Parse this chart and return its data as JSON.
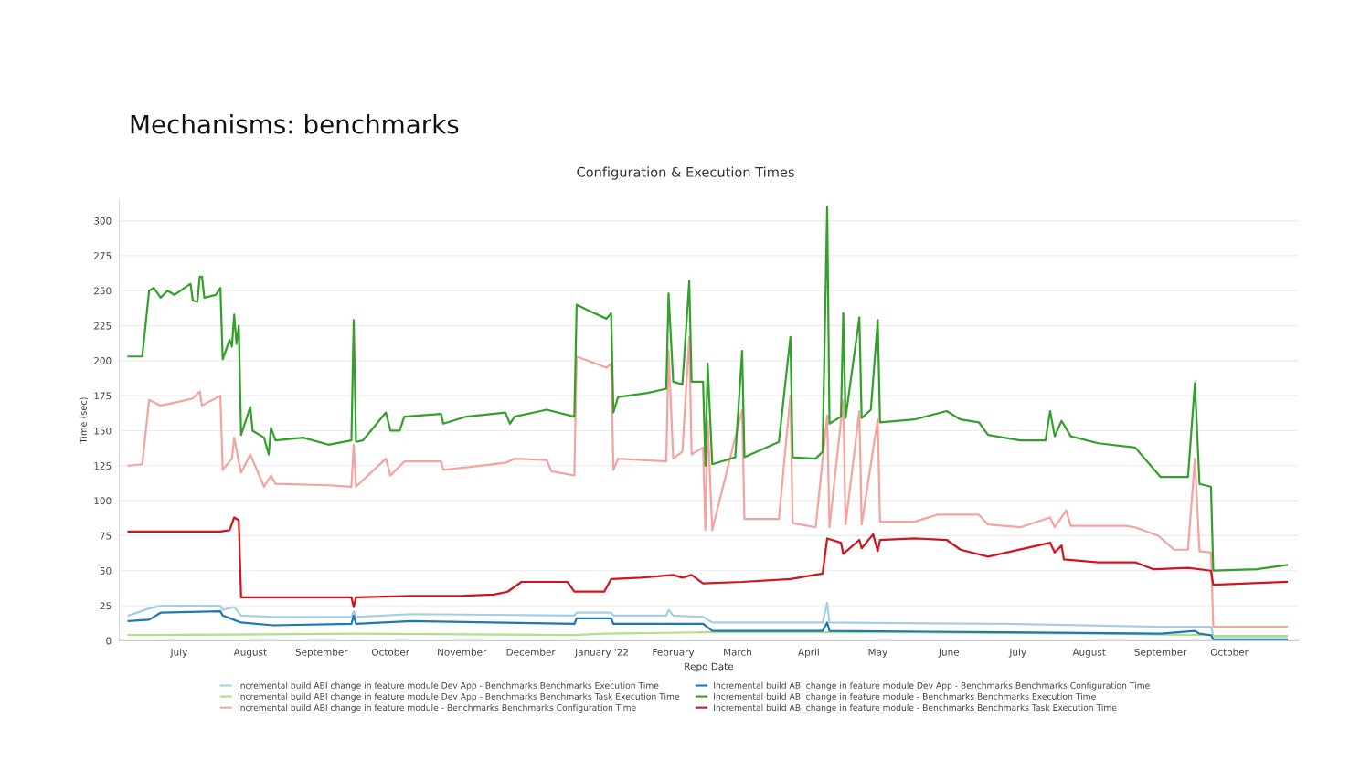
{
  "chart_data": {
    "type": "line",
    "title": "Mechanisms: benchmarks",
    "subtitle": "Configuration & Execution Times",
    "xlabel": "Repo Date",
    "ylabel": "Time (sec)",
    "xlim": [
      "2021-06-05",
      "2022-10-31"
    ],
    "ylim": [
      0,
      315
    ],
    "yticks": [
      0,
      25,
      50,
      75,
      100,
      125,
      150,
      175,
      200,
      225,
      250,
      275,
      300
    ],
    "xticks": [
      {
        "value": "2021-07-01",
        "label": "July"
      },
      {
        "value": "2021-08-01",
        "label": "August"
      },
      {
        "value": "2021-09-01",
        "label": "September"
      },
      {
        "value": "2021-10-01",
        "label": "October"
      },
      {
        "value": "2021-11-01",
        "label": "November"
      },
      {
        "value": "2021-12-01",
        "label": "December"
      },
      {
        "value": "2022-01-01",
        "label": "January '22"
      },
      {
        "value": "2022-02-01",
        "label": "February"
      },
      {
        "value": "2022-03-01",
        "label": "March"
      },
      {
        "value": "2022-04-01",
        "label": "April"
      },
      {
        "value": "2022-05-01",
        "label": "May"
      },
      {
        "value": "2022-06-01",
        "label": "June"
      },
      {
        "value": "2022-07-01",
        "label": "July"
      },
      {
        "value": "2022-08-01",
        "label": "August"
      },
      {
        "value": "2022-09-01",
        "label": "September"
      },
      {
        "value": "2022-10-01",
        "label": "October"
      }
    ],
    "grid": "y",
    "legend": "bottom",
    "marker": "none",
    "line_style": "solid",
    "series": [
      {
        "name": "Incremental build ABI change in feature module Dev App - Benchmarks Benchmarks Execution Time",
        "color": "#a6cee3",
        "x": [
          "2021-06-09",
          "2021-06-18",
          "2021-06-23",
          "2021-07-19",
          "2021-07-20",
          "2021-07-25",
          "2021-07-28",
          "2021-08-11",
          "2021-09-14",
          "2021-09-15",
          "2021-09-16",
          "2021-10-10",
          "2021-12-20",
          "2021-12-21",
          "2022-01-05",
          "2022-01-06",
          "2022-01-29",
          "2022-01-30",
          "2022-02-01",
          "2022-02-14",
          "2022-02-18",
          "2022-04-07",
          "2022-04-09",
          "2022-04-10",
          "2022-06-26",
          "2022-09-01",
          "2022-09-23",
          "2022-09-24",
          "2022-10-26"
        ],
        "values": [
          18,
          23,
          25,
          25,
          22,
          24,
          18,
          17,
          17,
          21,
          17,
          19,
          18,
          20,
          20,
          18,
          18,
          22,
          18,
          17,
          13,
          13,
          27,
          13,
          12,
          10,
          10,
          3.5,
          3.5
        ]
      },
      {
        "name": "Incremental build ABI change in feature module Dev App - Benchmarks Benchmarks Task Execution Time",
        "color": "#b2df8a",
        "x": [
          "2021-06-09",
          "2021-09-16",
          "2021-12-20",
          "2022-01-02",
          "2022-02-14",
          "2022-05-17",
          "2022-08-05",
          "2022-09-23",
          "2022-09-24",
          "2022-10-26"
        ],
        "values": [
          4,
          5,
          4,
          5,
          6,
          6,
          5,
          4,
          3,
          3
        ]
      },
      {
        "name": "Incremental build ABI change in feature module - Benchmarks Benchmarks Configuration Time",
        "color": "#f4a3a0",
        "x": [
          "2021-06-09",
          "2021-06-15",
          "2021-06-18",
          "2021-06-23",
          "2021-06-29",
          "2021-07-07",
          "2021-07-10",
          "2021-07-11",
          "2021-07-19",
          "2021-07-20",
          "2021-07-24",
          "2021-07-25",
          "2021-07-27",
          "2021-07-28",
          "2021-08-01",
          "2021-08-07",
          "2021-08-10",
          "2021-08-12",
          "2021-09-04",
          "2021-09-14",
          "2021-09-15",
          "2021-09-16",
          "2021-09-29",
          "2021-10-01",
          "2021-10-07",
          "2021-10-23",
          "2021-10-24",
          "2021-11-20",
          "2021-11-24",
          "2021-12-08",
          "2021-12-10",
          "2021-12-20",
          "2021-12-21",
          "2022-01-03",
          "2022-01-05",
          "2022-01-06",
          "2022-01-08",
          "2022-01-29",
          "2022-01-30",
          "2022-02-01",
          "2022-02-05",
          "2022-02-08",
          "2022-02-09",
          "2022-02-14",
          "2022-02-15",
          "2022-02-16",
          "2022-02-18",
          "2022-03-03",
          "2022-03-04",
          "2022-03-19",
          "2022-03-24",
          "2022-03-25",
          "2022-04-04",
          "2022-04-09",
          "2022-04-10",
          "2022-04-16",
          "2022-04-17",
          "2022-04-23",
          "2022-04-24",
          "2022-05-01",
          "2022-05-02",
          "2022-05-17",
          "2022-05-27",
          "2022-06-14",
          "2022-06-18",
          "2022-07-02",
          "2022-07-15",
          "2022-07-17",
          "2022-07-22",
          "2022-07-24",
          "2022-08-17",
          "2022-08-21",
          "2022-08-31",
          "2022-09-07",
          "2022-09-13",
          "2022-09-16",
          "2022-09-18",
          "2022-09-23",
          "2022-09-24",
          "2022-10-26"
        ],
        "values": [
          125,
          126,
          172,
          168,
          170,
          173,
          178,
          168,
          175,
          122,
          130,
          145,
          128,
          120,
          133,
          110,
          118,
          112,
          111,
          110,
          140,
          110,
          130,
          118,
          128,
          128,
          122,
          127,
          130,
          129,
          121,
          118,
          203,
          195,
          198,
          122,
          130,
          128,
          207,
          130,
          135,
          217,
          133,
          138,
          79,
          157,
          79,
          165,
          87,
          87,
          175,
          84,
          81,
          161,
          81,
          172,
          83,
          164,
          83,
          158,
          85,
          85,
          90,
          90,
          83,
          81,
          88,
          81,
          93,
          82,
          82,
          81,
          75,
          65,
          65,
          130,
          64,
          63,
          10,
          10
        ]
      },
      {
        "name": "Incremental build ABI change in feature module Dev App - Benchmarks Benchmarks Configuration Time",
        "color": "#1f78b4",
        "x": [
          "2021-06-09",
          "2021-06-18",
          "2021-06-23",
          "2021-07-19",
          "2021-07-20",
          "2021-07-28",
          "2021-08-11",
          "2021-09-14",
          "2021-09-15",
          "2021-09-16",
          "2021-10-10",
          "2021-12-20",
          "2021-12-21",
          "2022-01-05",
          "2022-01-06",
          "2022-02-14",
          "2022-02-18",
          "2022-04-07",
          "2022-04-09",
          "2022-04-10",
          "2022-06-26",
          "2022-09-01",
          "2022-09-16",
          "2022-09-18",
          "2022-09-23",
          "2022-09-24",
          "2022-10-26"
        ],
        "values": [
          14,
          15,
          20,
          21,
          18,
          13,
          11,
          12,
          18,
          12,
          14,
          12,
          16,
          16,
          12,
          12,
          7,
          7,
          13,
          7,
          6,
          5,
          7,
          5,
          4,
          1,
          1
        ]
      },
      {
        "name": "Incremental build ABI change in feature module - Benchmarks Benchmarks Execution Time",
        "color": "#33a02c",
        "x": [
          "2021-06-09",
          "2021-06-15",
          "2021-06-18",
          "2021-06-20",
          "2021-06-23",
          "2021-06-26",
          "2021-06-29",
          "2021-07-06",
          "2021-07-07",
          "2021-07-09",
          "2021-07-10",
          "2021-07-11",
          "2021-07-12",
          "2021-07-17",
          "2021-07-19",
          "2021-07-20",
          "2021-07-23",
          "2021-07-24",
          "2021-07-25",
          "2021-07-26",
          "2021-07-27",
          "2021-07-28",
          "2021-07-30",
          "2021-08-01",
          "2021-08-02",
          "2021-08-07",
          "2021-08-09",
          "2021-08-10",
          "2021-08-12",
          "2021-08-24",
          "2021-09-04",
          "2021-09-14",
          "2021-09-15",
          "2021-09-16",
          "2021-09-19",
          "2021-09-29",
          "2021-10-01",
          "2021-10-05",
          "2021-10-07",
          "2021-10-23",
          "2021-10-24",
          "2021-11-03",
          "2021-11-20",
          "2021-11-22",
          "2021-11-24",
          "2021-12-08",
          "2021-12-20",
          "2021-12-21",
          "2021-12-26",
          "2022-01-03",
          "2022-01-05",
          "2022-01-06",
          "2022-01-08",
          "2022-01-21",
          "2022-01-29",
          "2022-01-30",
          "2022-02-01",
          "2022-02-05",
          "2022-02-08",
          "2022-02-09",
          "2022-02-14",
          "2022-02-15",
          "2022-02-16",
          "2022-02-18",
          "2022-02-28",
          "2022-03-03",
          "2022-03-04",
          "2022-03-19",
          "2022-03-24",
          "2022-03-25",
          "2022-04-04",
          "2022-04-07",
          "2022-04-09",
          "2022-04-10",
          "2022-04-15",
          "2022-04-16",
          "2022-04-17",
          "2022-04-23",
          "2022-04-24",
          "2022-04-28",
          "2022-05-01",
          "2022-05-02",
          "2022-05-17",
          "2022-05-31",
          "2022-06-06",
          "2022-06-14",
          "2022-06-18",
          "2022-07-02",
          "2022-07-13",
          "2022-07-15",
          "2022-07-17",
          "2022-07-20",
          "2022-07-24",
          "2022-08-05",
          "2022-08-21",
          "2022-09-01",
          "2022-09-13",
          "2022-09-16",
          "2022-09-18",
          "2022-09-23",
          "2022-09-24",
          "2022-10-13",
          "2022-10-26"
        ],
        "values": [
          203,
          203,
          250,
          252,
          245,
          250,
          247,
          255,
          243,
          242,
          260,
          260,
          245,
          247,
          252,
          201,
          215,
          210,
          233,
          212,
          225,
          147,
          157,
          167,
          150,
          145,
          133,
          152,
          143,
          145,
          140,
          143,
          229,
          142,
          143,
          163,
          150,
          150,
          160,
          162,
          155,
          160,
          163,
          155,
          160,
          165,
          160,
          240,
          236,
          230,
          234,
          163,
          174,
          177,
          180,
          248,
          185,
          183,
          257,
          185,
          185,
          125,
          198,
          126,
          131,
          207,
          131,
          142,
          217,
          131,
          130,
          135,
          310,
          155,
          160,
          234,
          159,
          231,
          159,
          165,
          229,
          156,
          158,
          164,
          158,
          156,
          147,
          143,
          143,
          164,
          146,
          157,
          146,
          141,
          138,
          117,
          117,
          184,
          112,
          110,
          50,
          51,
          54
        ]
      },
      {
        "name": "Incremental build ABI change in feature module - Benchmarks Benchmarks Task Execution Time",
        "color": "#d0161c",
        "x": [
          "2021-06-09",
          "2021-06-29",
          "2021-07-19",
          "2021-07-23",
          "2021-07-25",
          "2021-07-27",
          "2021-07-28",
          "2021-08-11",
          "2021-09-14",
          "2021-09-15",
          "2021-09-16",
          "2021-10-10",
          "2021-11-01",
          "2021-11-15",
          "2021-11-21",
          "2021-11-27",
          "2021-12-17",
          "2021-12-20",
          "2022-01-02",
          "2022-01-05",
          "2022-01-18",
          "2022-02-01",
          "2022-02-05",
          "2022-02-09",
          "2022-02-14",
          "2022-03-03",
          "2022-03-24",
          "2022-04-07",
          "2022-04-09",
          "2022-04-15",
          "2022-04-16",
          "2022-04-23",
          "2022-04-24",
          "2022-04-29",
          "2022-05-01",
          "2022-05-02",
          "2022-05-17",
          "2022-05-31",
          "2022-06-06",
          "2022-06-18",
          "2022-07-15",
          "2022-07-17",
          "2022-07-20",
          "2022-07-21",
          "2022-08-05",
          "2022-08-21",
          "2022-08-29",
          "2022-09-13",
          "2022-09-23",
          "2022-09-24",
          "2022-10-26"
        ],
        "values": [
          78,
          78,
          78,
          79,
          88,
          86,
          31,
          31,
          31,
          24,
          31,
          32,
          32,
          33,
          35,
          42,
          42,
          35,
          35,
          44,
          45,
          47,
          45,
          47,
          41,
          42,
          44,
          48,
          73,
          70,
          62,
          72,
          66,
          76,
          64,
          72,
          73,
          72,
          65,
          60,
          70,
          63,
          68,
          58,
          56,
          56,
          51,
          52,
          50,
          40,
          42
        ]
      }
    ]
  }
}
